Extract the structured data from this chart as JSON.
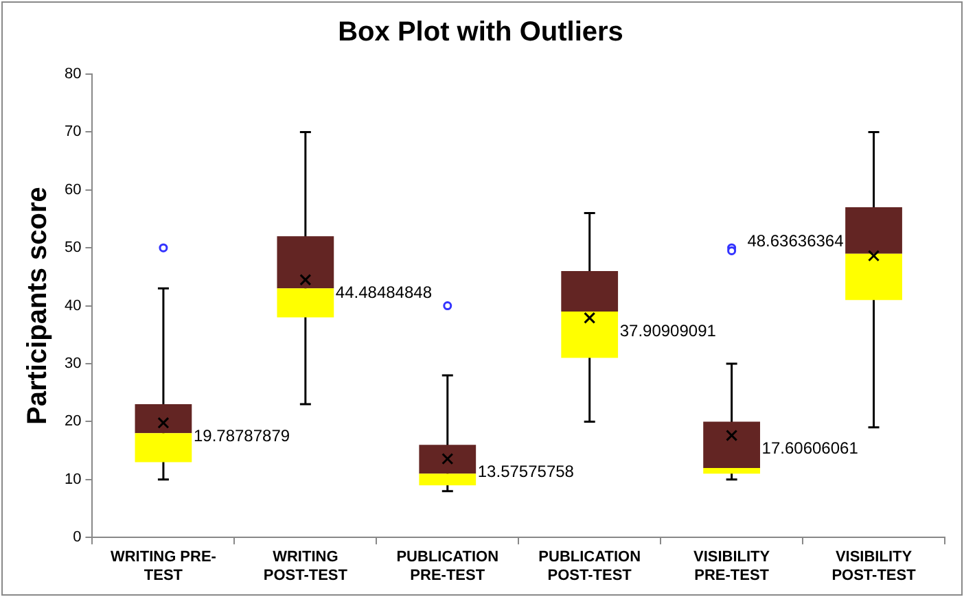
{
  "chart_data": {
    "type": "box",
    "title": "Box Plot with Outliers",
    "ylabel": "Participants score",
    "categories": [
      "WRITING PRE-TEST",
      "WRITING POST-TEST",
      "PUBLICATION PRE-TEST",
      "PUBLICATION POST-TEST",
      "VISIBILITY PRE-TEST",
      "VISIBILITY POST-TEST"
    ],
    "boxes": [
      {
        "low": 10,
        "q1": 13,
        "median": 18,
        "q3": 23,
        "high": 43,
        "mean": 19.78787879,
        "outliers": [
          50
        ]
      },
      {
        "low": 23,
        "q1": 38,
        "median": 43,
        "q3": 52,
        "high": 70,
        "mean": 44.48484848
      },
      {
        "low": 8,
        "q1": 9,
        "median": 11,
        "q3": 16,
        "high": 28,
        "mean": 13.57575758,
        "outliers": [
          40
        ]
      },
      {
        "low": 20,
        "q1": 31,
        "median": 39,
        "q3": 46,
        "high": 56,
        "mean": 37.90909091
      },
      {
        "low": 10,
        "q1": 11,
        "median": 12,
        "q3": 20,
        "high": 30,
        "mean": 17.60606061,
        "outliers": [
          49.5,
          50
        ]
      },
      {
        "low": 19,
        "q1": 41,
        "median": 49,
        "q3": 57,
        "high": 70,
        "mean": 48.63636364
      }
    ],
    "color": "#632523",
    "colors": [
      "#ffff00",
      "#ffff00",
      "#ffff00",
      "#ffff00",
      "#ffff00",
      "#ffff00"
    ],
    "annotations": [
      {
        "text": "19.78787879",
        "x": "WRITING PRE-TEST",
        "y": 19.78787879
      },
      {
        "text": "44.48484848",
        "x": "WRITING POST-TEST",
        "y": 44.48484848
      },
      {
        "text": "13.57575758",
        "x": "PUBLICATION PRE-TEST",
        "y": 13.57575758
      },
      {
        "text": "37.90909091",
        "x": "PUBLICATION POST-TEST",
        "y": 37.90909091
      },
      {
        "text": "17.60606061",
        "x": "VISIBILITY PRE-TEST",
        "y": 17.60606061
      },
      {
        "text": "48.63636364",
        "x": "VISIBILITY POST-TEST",
        "y": 48.63636364
      }
    ],
    "ylim": [
      0,
      80
    ],
    "yticks": [
      0,
      10,
      20,
      30,
      40,
      50,
      60,
      70,
      80
    ],
    "grid": false,
    "legend": false,
    "marker": "cross"
  }
}
